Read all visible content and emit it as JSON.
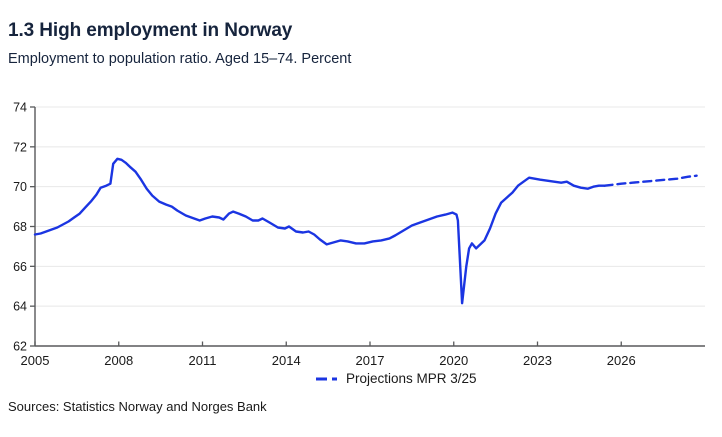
{
  "header": {
    "title": "1.3 High employment in Norway",
    "subtitle": "Employment to population ratio. Aged 15–74. Percent"
  },
  "legend": {
    "label": "Projections MPR 3/25"
  },
  "footer": {
    "sources": "Sources: Statistics Norway and Norges Bank"
  },
  "colors": {
    "line": "#1b35e2",
    "title_text": "#16243d",
    "tick_text": "#1a1a1a",
    "axis": "#58595b",
    "grid": "#e8e8e8",
    "background": "#ffffff"
  },
  "chart_data": {
    "type": "line",
    "title": "1.3 High employment in Norway",
    "subtitle": "Employment to population ratio. Aged 15–74. Percent",
    "xlabel": "",
    "ylabel": "",
    "xlim": [
      2005,
      2029
    ],
    "ylim": [
      62,
      74
    ],
    "xticks": [
      2005,
      2008,
      2011,
      2014,
      2017,
      2020,
      2023,
      2026
    ],
    "yticks": [
      62,
      64,
      66,
      68,
      70,
      72,
      74
    ],
    "grid": "horizontal",
    "legend_position": "bottom-center",
    "series": [
      {
        "name": "Employment to population ratio (history)",
        "style": "solid",
        "points": [
          [
            2005.0,
            67.6
          ],
          [
            2005.2,
            67.65
          ],
          [
            2005.4,
            67.75
          ],
          [
            2005.6,
            67.85
          ],
          [
            2005.8,
            67.95
          ],
          [
            2006.0,
            68.1
          ],
          [
            2006.2,
            68.25
          ],
          [
            2006.4,
            68.45
          ],
          [
            2006.6,
            68.65
          ],
          [
            2006.8,
            68.95
          ],
          [
            2007.0,
            69.25
          ],
          [
            2007.2,
            69.6
          ],
          [
            2007.35,
            69.95
          ],
          [
            2007.55,
            70.05
          ],
          [
            2007.7,
            70.15
          ],
          [
            2007.8,
            71.15
          ],
          [
            2007.95,
            71.4
          ],
          [
            2008.1,
            71.35
          ],
          [
            2008.25,
            71.2
          ],
          [
            2008.4,
            71.0
          ],
          [
            2008.6,
            70.75
          ],
          [
            2008.8,
            70.35
          ],
          [
            2009.0,
            69.9
          ],
          [
            2009.2,
            69.55
          ],
          [
            2009.45,
            69.25
          ],
          [
            2009.7,
            69.1
          ],
          [
            2009.9,
            69.0
          ],
          [
            2010.1,
            68.8
          ],
          [
            2010.4,
            68.55
          ],
          [
            2010.7,
            68.4
          ],
          [
            2010.9,
            68.3
          ],
          [
            2011.1,
            68.4
          ],
          [
            2011.35,
            68.5
          ],
          [
            2011.6,
            68.45
          ],
          [
            2011.75,
            68.35
          ],
          [
            2011.95,
            68.65
          ],
          [
            2012.1,
            68.75
          ],
          [
            2012.3,
            68.65
          ],
          [
            2012.55,
            68.5
          ],
          [
            2012.8,
            68.3
          ],
          [
            2013.0,
            68.3
          ],
          [
            2013.15,
            68.4
          ],
          [
            2013.4,
            68.2
          ],
          [
            2013.7,
            67.95
          ],
          [
            2013.95,
            67.9
          ],
          [
            2014.1,
            68.0
          ],
          [
            2014.35,
            67.75
          ],
          [
            2014.6,
            67.7
          ],
          [
            2014.8,
            67.75
          ],
          [
            2015.0,
            67.6
          ],
          [
            2015.2,
            67.35
          ],
          [
            2015.45,
            67.1
          ],
          [
            2015.7,
            67.2
          ],
          [
            2015.95,
            67.3
          ],
          [
            2016.2,
            67.25
          ],
          [
            2016.5,
            67.15
          ],
          [
            2016.8,
            67.15
          ],
          [
            2017.1,
            67.25
          ],
          [
            2017.4,
            67.3
          ],
          [
            2017.7,
            67.4
          ],
          [
            2017.9,
            67.55
          ],
          [
            2018.2,
            67.8
          ],
          [
            2018.5,
            68.05
          ],
          [
            2018.8,
            68.2
          ],
          [
            2019.1,
            68.35
          ],
          [
            2019.4,
            68.5
          ],
          [
            2019.7,
            68.6
          ],
          [
            2019.95,
            68.7
          ],
          [
            2020.1,
            68.6
          ],
          [
            2020.15,
            68.3
          ],
          [
            2020.3,
            64.15
          ],
          [
            2020.45,
            66.0
          ],
          [
            2020.55,
            66.9
          ],
          [
            2020.65,
            67.15
          ],
          [
            2020.8,
            66.9
          ],
          [
            2020.95,
            67.1
          ],
          [
            2021.1,
            67.3
          ],
          [
            2021.3,
            67.9
          ],
          [
            2021.5,
            68.65
          ],
          [
            2021.7,
            69.2
          ],
          [
            2021.9,
            69.45
          ],
          [
            2022.1,
            69.7
          ],
          [
            2022.3,
            70.05
          ],
          [
            2022.5,
            70.25
          ],
          [
            2022.7,
            70.45
          ],
          [
            2022.9,
            70.4
          ],
          [
            2023.1,
            70.35
          ],
          [
            2023.35,
            70.3
          ],
          [
            2023.6,
            70.25
          ],
          [
            2023.85,
            70.2
          ],
          [
            2024.05,
            70.25
          ],
          [
            2024.3,
            70.05
          ],
          [
            2024.55,
            69.95
          ],
          [
            2024.8,
            69.9
          ],
          [
            2025.0,
            70.0
          ],
          [
            2025.2,
            70.05
          ],
          [
            2025.4,
            70.05
          ]
        ]
      },
      {
        "name": "Projections MPR 3/25",
        "style": "dashed",
        "points": [
          [
            2025.4,
            70.05
          ],
          [
            2025.7,
            70.1
          ],
          [
            2026.0,
            70.15
          ],
          [
            2026.4,
            70.2
          ],
          [
            2026.8,
            70.25
          ],
          [
            2027.2,
            70.3
          ],
          [
            2027.6,
            70.35
          ],
          [
            2028.0,
            70.4
          ],
          [
            2028.4,
            70.5
          ],
          [
            2028.7,
            70.55
          ]
        ]
      }
    ]
  }
}
